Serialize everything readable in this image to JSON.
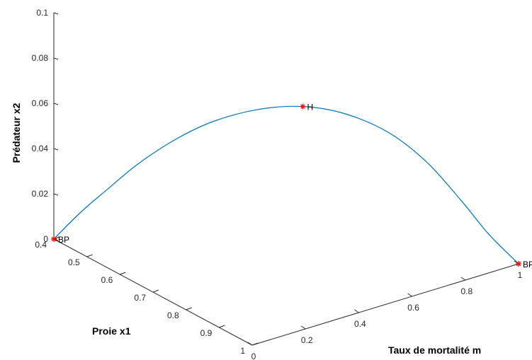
{
  "chart_data": {
    "type": "line3d",
    "title": "",
    "xlabel": "Taux de mortalité m",
    "ylabel": "Proie x1",
    "zlabel": "Prédateur x2",
    "xlim": [
      0,
      1
    ],
    "ylim": [
      0.4,
      1
    ],
    "zlim": [
      0,
      0.1
    ],
    "x_ticks": [
      "0",
      "0.2",
      "0.4",
      "0.6",
      "0.8",
      "1"
    ],
    "y_ticks": [
      "0.4",
      "0.5",
      "0.6",
      "0.7",
      "0.8",
      "0.9",
      "1"
    ],
    "z_ticks": [
      "0",
      "0.02",
      "0.04",
      "0.06",
      "0.08",
      "0.1"
    ],
    "grid": false,
    "line_color": "#0072BD",
    "marker_color": "#FF0000",
    "curve": {
      "x": [
        0.0,
        0.065,
        0.125,
        0.19,
        0.27,
        0.35,
        0.45,
        0.55,
        0.65,
        0.75,
        0.83,
        0.9,
        0.95,
        1.0
      ],
      "y": [
        0.4,
        0.43,
        0.46,
        0.5,
        0.55,
        0.6,
        0.655,
        0.71,
        0.76,
        0.81,
        0.86,
        0.91,
        0.95,
        1.0
      ],
      "z": [
        0.0,
        0.012,
        0.022,
        0.034,
        0.046,
        0.055,
        0.061,
        0.063,
        0.06,
        0.052,
        0.04,
        0.024,
        0.011,
        0.0
      ]
    },
    "points": [
      {
        "label": "BP",
        "x": 0.0,
        "y": 0.4,
        "z": 0.0
      },
      {
        "label": "H",
        "x": 0.55,
        "y": 0.71,
        "z": 0.063
      },
      {
        "label": "BP",
        "x": 1.0,
        "y": 1.0,
        "z": 0.0
      }
    ]
  }
}
